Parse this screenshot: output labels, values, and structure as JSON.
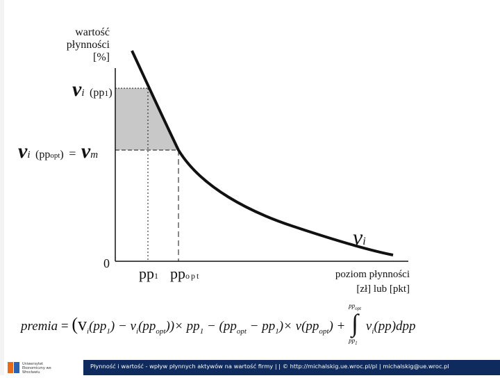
{
  "y_axis_label": {
    "line1": "wartość",
    "line2": "płynności",
    "line3": "[%]"
  },
  "labels": {
    "vi_symbol": "v",
    "vi_sub": "i",
    "pp1_arg": "(pp",
    "pp1_sub": "1",
    "close_paren": ")",
    "ppopt_arg": "(pp",
    "opt_sub": "opt",
    "equals": "=",
    "vm_symbol": "v",
    "vm_sub": "m",
    "curve_label": "v",
    "curve_sub": "i",
    "zero": "0",
    "pp1_tick": "pp",
    "pp1_tick_sub": "1",
    "ppopt_tick": "pp",
    "ppopt_tick_sub": "opt"
  },
  "x_axis_label": {
    "line1": "poziom płynności",
    "line2": "[zł] lub [pkt]"
  },
  "formula": {
    "lhs": "premia",
    "eq": "=",
    "term1": "(v",
    "term1_rest": "(pp",
    "sub_1": "1",
    "term1_mid": ") − v",
    "term1_mid2": "(pp",
    "sub_opt": "opt",
    "times_pp1": "))× pp",
    "minus": " − (pp",
    "minus_pp1": " − pp",
    "times_v": ")× v(pp",
    "plus": ") +",
    "integral_top": "pp",
    "integral_top_sub": "opt",
    "integral_bottom": "pp",
    "integral_bottom_sub": "1",
    "integrand": "v",
    "integrand_rest": "(pp)dpp"
  },
  "footer": {
    "text": "Płynność i wartość - wpływ płynnych aktywów na wartość firmy | | © http://michalskig.ue.wroc.pl/pl | michalskig@ue.wroc.pl",
    "logo_text": "Uniwersytet Ekonomiczny we Wrocławiu"
  },
  "colors": {
    "shade": "#c8c8c8",
    "footer_bg": "#0f2a5c",
    "curve": "#111111"
  }
}
